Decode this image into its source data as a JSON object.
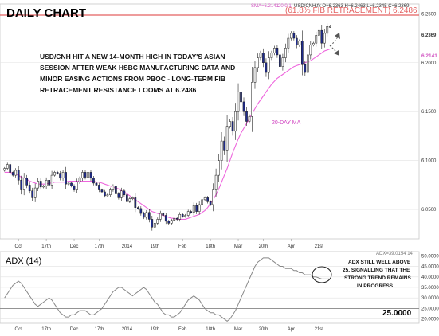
{
  "header": {
    "title": "DAILY CHART",
    "sma_label": "SMA=6.2141",
    "sma_period": "20.0.1",
    "ohlc": "USD/CNH.fx O=6.2363 H=6.2463 L=6.2345 C=6.2369"
  },
  "colors": {
    "bull": "#ffffff",
    "bear": "#1f2c8f",
    "ma": "#ee66dd",
    "fib": "#e36060",
    "adx": "#888888",
    "grid": "#e2e2e2"
  },
  "annotation": {
    "lines": [
      "USD/CNH HIT A NEW 14-MONTH HIGH IN TODAY'S ASIAN",
      "SESSION AFTER WEAK HSBC MANUFACTURING DATA AND",
      "MINOR EASING ACTIONS FROM PBOC - LONG-TERM FIB",
      "RETRACEMENT RESISTANCE LOOMS AT 6.2486"
    ]
  },
  "ma_label": "20-DAY MA",
  "adx_panel": {
    "title": "ADX (14)",
    "readout": "ADX=39.0154 14",
    "line_label": "25.0000",
    "annotation": [
      "ADX STILL WELL ABOVE",
      "25, SIGNALLING THAT THE",
      "STRONG TREND REMAINS",
      "IN PROGRESS"
    ]
  },
  "chart_data": {
    "type": "candlestick",
    "title": "DAILY CHART",
    "instrument": "USD/CNH",
    "price_axis": {
      "ticks": [
        "6.2500",
        "6.2000",
        "6.1500",
        "6.1000",
        "6.0500"
      ],
      "ylim": [
        6.02,
        6.26
      ],
      "current_ma_label": "6.2141",
      "current_price_label": "6.2369"
    },
    "x_axis": {
      "tick_labels": [
        "Oct",
        "17th",
        "Dec",
        "17th",
        "2014",
        "19th",
        "Feb",
        "18th",
        "Mar",
        "20th",
        "Apr",
        "21st"
      ]
    },
    "fib_level": {
      "label": "(61.8% FIB RETRACEMENT) 6.2486",
      "value": 6.2486
    },
    "candles_close": [
      6.092,
      6.096,
      6.088,
      6.085,
      6.09,
      6.08,
      6.07,
      6.082,
      6.075,
      6.069,
      6.062,
      6.072,
      6.079,
      6.073,
      6.074,
      6.08,
      6.075,
      6.085,
      6.088,
      6.087,
      6.082,
      6.088,
      6.076,
      6.077,
      6.074,
      6.07,
      6.078,
      6.082,
      6.088,
      6.083,
      6.088,
      6.082,
      6.077,
      6.075,
      6.07,
      6.068,
      6.064,
      6.065,
      6.07,
      6.074,
      6.066,
      6.062,
      6.069,
      6.065,
      6.058,
      6.061,
      6.062,
      6.052,
      6.051,
      6.046,
      6.042,
      6.047,
      6.04,
      6.032,
      6.036,
      6.04,
      6.046,
      6.044,
      6.038,
      6.036,
      6.039,
      6.041,
      6.04,
      6.045,
      6.043,
      6.044,
      6.048,
      6.047,
      6.054,
      6.048,
      6.055,
      6.06,
      6.062,
      6.058,
      6.055,
      6.07,
      6.085,
      6.1,
      6.12,
      6.11,
      6.135,
      6.14,
      6.13,
      6.15,
      6.17,
      6.16,
      6.15,
      6.14,
      6.145,
      6.18,
      6.195,
      6.205,
      6.21,
      6.2,
      6.19,
      6.205,
      6.21,
      6.215,
      6.208,
      6.196,
      6.205,
      6.215,
      6.225,
      6.23,
      6.225,
      6.218,
      6.222,
      6.198,
      6.19,
      6.208,
      6.218,
      6.22,
      6.228,
      6.233,
      6.22,
      6.23,
      6.237,
      6.237
    ],
    "ma20": [
      6.088,
      6.088,
      6.088,
      6.087,
      6.086,
      6.085,
      6.083,
      6.082,
      6.081,
      6.079,
      6.078,
      6.077,
      6.076,
      6.076,
      6.076,
      6.076,
      6.077,
      6.077,
      6.078,
      6.078,
      6.078,
      6.078,
      6.078,
      6.079,
      6.079,
      6.079,
      6.079,
      6.079,
      6.079,
      6.079,
      6.079,
      6.079,
      6.079,
      6.078,
      6.078,
      6.077,
      6.076,
      6.075,
      6.074,
      6.073,
      6.072,
      6.071,
      6.069,
      6.068,
      6.066,
      6.064,
      6.062,
      6.06,
      6.058,
      6.056,
      6.054,
      6.052,
      6.05,
      6.048,
      6.047,
      6.046,
      6.045,
      6.044,
      6.043,
      6.042,
      6.041,
      6.041,
      6.04,
      6.04,
      6.04,
      6.04,
      6.041,
      6.042,
      6.043,
      6.044,
      6.045,
      6.047,
      6.049,
      6.052,
      6.056,
      6.06,
      6.065,
      6.071,
      6.078,
      6.085,
      6.092,
      6.1,
      6.108,
      6.115,
      6.122,
      6.128,
      6.133,
      6.138,
      6.143,
      6.148,
      6.153,
      6.158,
      6.162,
      6.166,
      6.17,
      6.174,
      6.178,
      6.181,
      6.184,
      6.186,
      6.188,
      6.19,
      6.192,
      6.194,
      6.196,
      6.197,
      6.198,
      6.199,
      6.2,
      6.201,
      6.202,
      6.204,
      6.206,
      6.208,
      6.21,
      6.212,
      6.213,
      6.214
    ],
    "adx_axis": {
      "ticks": [
        "50.0000",
        "45.0000",
        "40.0000",
        "35.0000",
        "30.0000",
        "25.0000",
        "20.0000"
      ],
      "ylim": [
        18,
        52
      ]
    },
    "adx": [
      30,
      32,
      34,
      36,
      37,
      38,
      37,
      35,
      33,
      31,
      29,
      27,
      26,
      27,
      28,
      29,
      30,
      29,
      27,
      25,
      23,
      22,
      21,
      21,
      22,
      22,
      23,
      24,
      24,
      24,
      23,
      22,
      22,
      23,
      24,
      25,
      27,
      29,
      31,
      33,
      34,
      35,
      35,
      34,
      33,
      32,
      31,
      32,
      33,
      34,
      35,
      34,
      32,
      30,
      28,
      27,
      25,
      23,
      22,
      22,
      21,
      21,
      22,
      23,
      25,
      27,
      29,
      30,
      31,
      30,
      29,
      27,
      25,
      24,
      23,
      23,
      22,
      22,
      21,
      20,
      19,
      20,
      22,
      24,
      27,
      30,
      33,
      36,
      39,
      42,
      45,
      47,
      48,
      49,
      49,
      49,
      48,
      47,
      46,
      45,
      45,
      44,
      44,
      44,
      43,
      43,
      42,
      42,
      41,
      41,
      41,
      40,
      40,
      39.5,
      39,
      39,
      39,
      39.0154
    ]
  }
}
